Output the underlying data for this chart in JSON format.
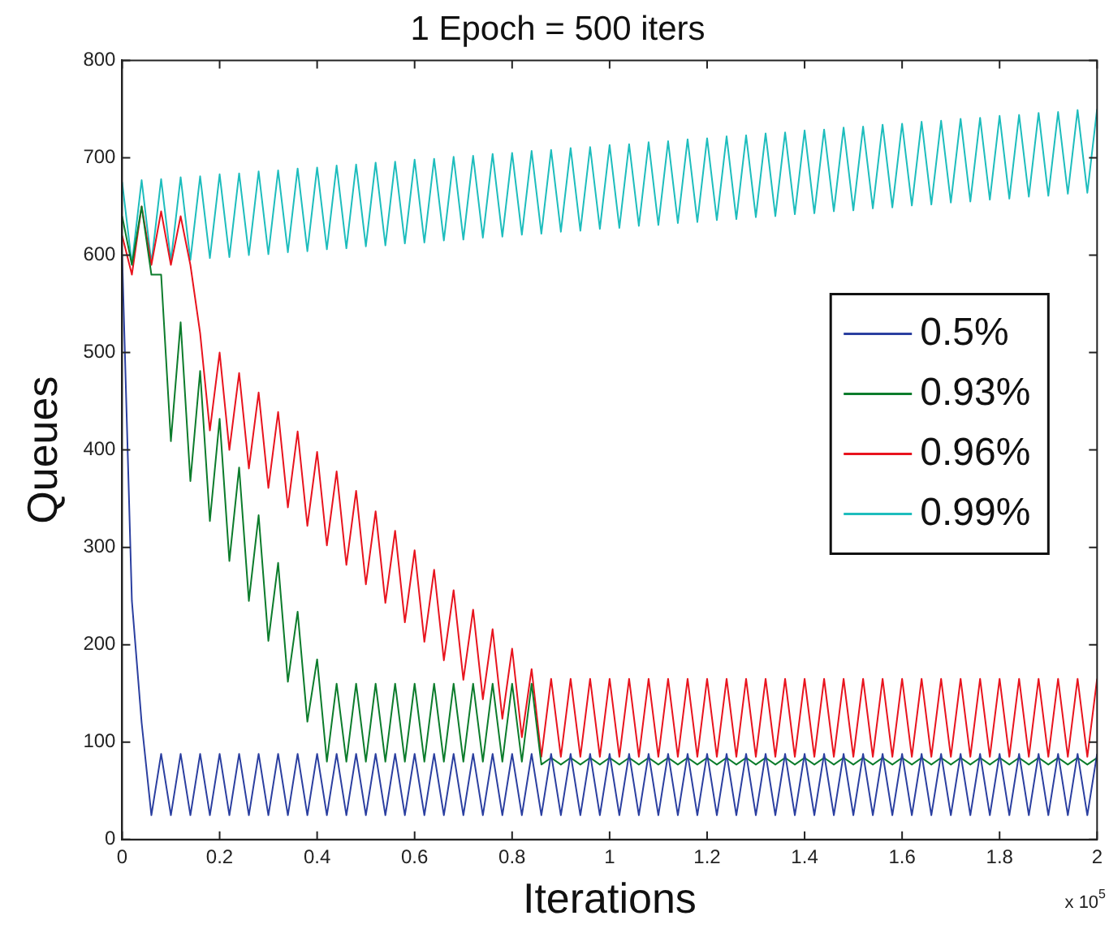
{
  "chart_data": {
    "type": "line",
    "title": "1 Epoch = 500 iters",
    "xlabel": "Iterations",
    "ylabel": "Queues",
    "annotations": [
      "x 10$^{5}$"
    ],
    "x": [
      0,
      0.02,
      0.04,
      0.06,
      0.08,
      0.1,
      0.12,
      0.14,
      0.16,
      0.18,
      0.2,
      0.22,
      0.24,
      0.26,
      0.28,
      0.3,
      0.32,
      0.34,
      0.36,
      0.38,
      0.4,
      0.42,
      0.44,
      0.46,
      0.48,
      0.5,
      0.52,
      0.54,
      0.56,
      0.58,
      0.6,
      0.62,
      0.64,
      0.66,
      0.68,
      0.7,
      0.72,
      0.74,
      0.76,
      0.78,
      0.8,
      0.82,
      0.84,
      0.86,
      0.88,
      0.9,
      0.92,
      0.94,
      0.96,
      0.98,
      1,
      1.02,
      1.04,
      1.06,
      1.08,
      1.1,
      1.12,
      1.14,
      1.16,
      1.18,
      1.2,
      1.22,
      1.24,
      1.26,
      1.28,
      1.3,
      1.32,
      1.34,
      1.36,
      1.38,
      1.4,
      1.42,
      1.44,
      1.46,
      1.48,
      1.5,
      1.52,
      1.54,
      1.56,
      1.58,
      1.6,
      1.62,
      1.64,
      1.66,
      1.68,
      1.7,
      1.72,
      1.74,
      1.76,
      1.78,
      1.8,
      1.82,
      1.84,
      1.86,
      1.88,
      1.9,
      1.92,
      1.94,
      1.96,
      1.98,
      2
    ],
    "series": [
      {
        "name": "0.5%",
        "color": "#2b3fa0",
        "values": [
          600,
          245,
          120,
          25,
          88,
          25,
          88,
          25,
          88,
          25,
          88,
          25,
          88,
          25,
          88,
          25,
          88,
          25,
          88,
          25,
          88,
          25,
          88,
          25,
          88,
          25,
          88,
          25,
          88,
          25,
          88,
          25,
          88,
          25,
          88,
          25,
          88,
          25,
          88,
          25,
          88,
          25,
          88,
          25,
          88,
          25,
          88,
          25,
          88,
          25,
          88,
          25,
          88,
          25,
          88,
          25,
          88,
          25,
          88,
          25,
          88,
          25,
          88,
          25,
          88,
          25,
          88,
          25,
          88,
          25,
          88,
          25,
          88,
          25,
          88,
          25,
          88,
          25,
          88,
          25,
          88,
          25,
          88,
          25,
          88,
          25,
          88,
          25,
          88,
          25,
          88,
          25,
          88,
          25,
          88,
          25,
          88,
          25,
          88,
          25,
          88
        ]
      },
      {
        "name": "0.93%",
        "color": "#0c7c2c",
        "values": [
          640,
          590,
          650,
          580,
          580,
          409,
          531,
          368,
          481,
          327,
          432,
          286,
          382,
          245,
          333,
          204,
          284,
          162,
          234,
          121,
          185,
          80,
          160,
          80,
          160,
          80,
          160,
          80,
          160,
          80,
          160,
          80,
          160,
          80,
          160,
          80,
          160,
          80,
          160,
          80,
          160,
          80,
          160,
          77,
          84,
          77,
          84,
          77,
          84,
          77,
          84,
          77,
          84,
          77,
          84,
          77,
          84,
          77,
          84,
          77,
          84,
          77,
          84,
          77,
          84,
          77,
          84,
          77,
          84,
          77,
          84,
          77,
          84,
          77,
          84,
          77,
          84,
          77,
          84,
          77,
          84,
          77,
          84,
          77,
          84,
          77,
          84,
          77,
          84,
          77,
          84,
          77,
          84,
          77,
          84,
          77,
          84,
          77,
          84,
          77,
          84
        ]
      },
      {
        "name": "0.96%",
        "color": "#e8141e",
        "values": [
          620,
          580,
          650,
          590,
          645,
          590,
          640,
          590,
          520,
          420,
          500,
          400,
          479,
          381,
          459,
          361,
          439,
          341,
          419,
          322,
          398,
          302,
          378,
          282,
          358,
          262,
          337,
          243,
          317,
          223,
          297,
          203,
          277,
          184,
          256,
          164,
          236,
          144,
          216,
          124,
          196,
          105,
          175,
          85,
          165,
          85,
          165,
          85,
          165,
          85,
          165,
          85,
          165,
          85,
          165,
          85,
          165,
          85,
          165,
          85,
          165,
          85,
          165,
          85,
          165,
          85,
          165,
          85,
          165,
          85,
          165,
          85,
          165,
          85,
          165,
          85,
          165,
          85,
          165,
          85,
          165,
          85,
          165,
          85,
          165,
          85,
          165,
          85,
          165,
          85,
          165,
          85,
          165,
          85,
          165,
          85,
          165,
          85,
          165,
          85,
          165
        ]
      },
      {
        "name": "0.99%",
        "color": "#1ebdbd",
        "values": [
          675,
          591,
          677,
          592,
          678,
          594,
          680,
          595,
          681,
          597,
          683,
          598,
          684,
          600,
          686,
          601,
          687,
          603,
          689,
          604,
          690,
          606,
          692,
          607,
          693,
          609,
          695,
          610,
          696,
          612,
          698,
          613,
          699,
          615,
          701,
          616,
          702,
          618,
          704,
          619,
          705,
          621,
          707,
          622,
          708,
          624,
          710,
          625,
          711,
          627,
          713,
          628,
          714,
          630,
          716,
          631,
          717,
          633,
          719,
          634,
          720,
          636,
          722,
          637,
          723,
          639,
          725,
          640,
          726,
          642,
          728,
          643,
          729,
          645,
          731,
          646,
          732,
          648,
          734,
          649,
          735,
          651,
          737,
          652,
          738,
          654,
          740,
          655,
          741,
          657,
          743,
          658,
          744,
          660,
          746,
          661,
          747,
          663,
          749,
          664,
          750
        ]
      }
    ],
    "xlim": [
      0,
      2
    ],
    "xticks": [
      0,
      0.2,
      0.4,
      0.6,
      0.8,
      1,
      1.2,
      1.4,
      1.6,
      1.8,
      2
    ],
    "ylim": [
      0,
      800
    ],
    "yticks": [
      0,
      100,
      200,
      300,
      400,
      500,
      600,
      700,
      800
    ],
    "grid": false,
    "legend": "right",
    "marker": "none",
    "line_style": "solid"
  }
}
